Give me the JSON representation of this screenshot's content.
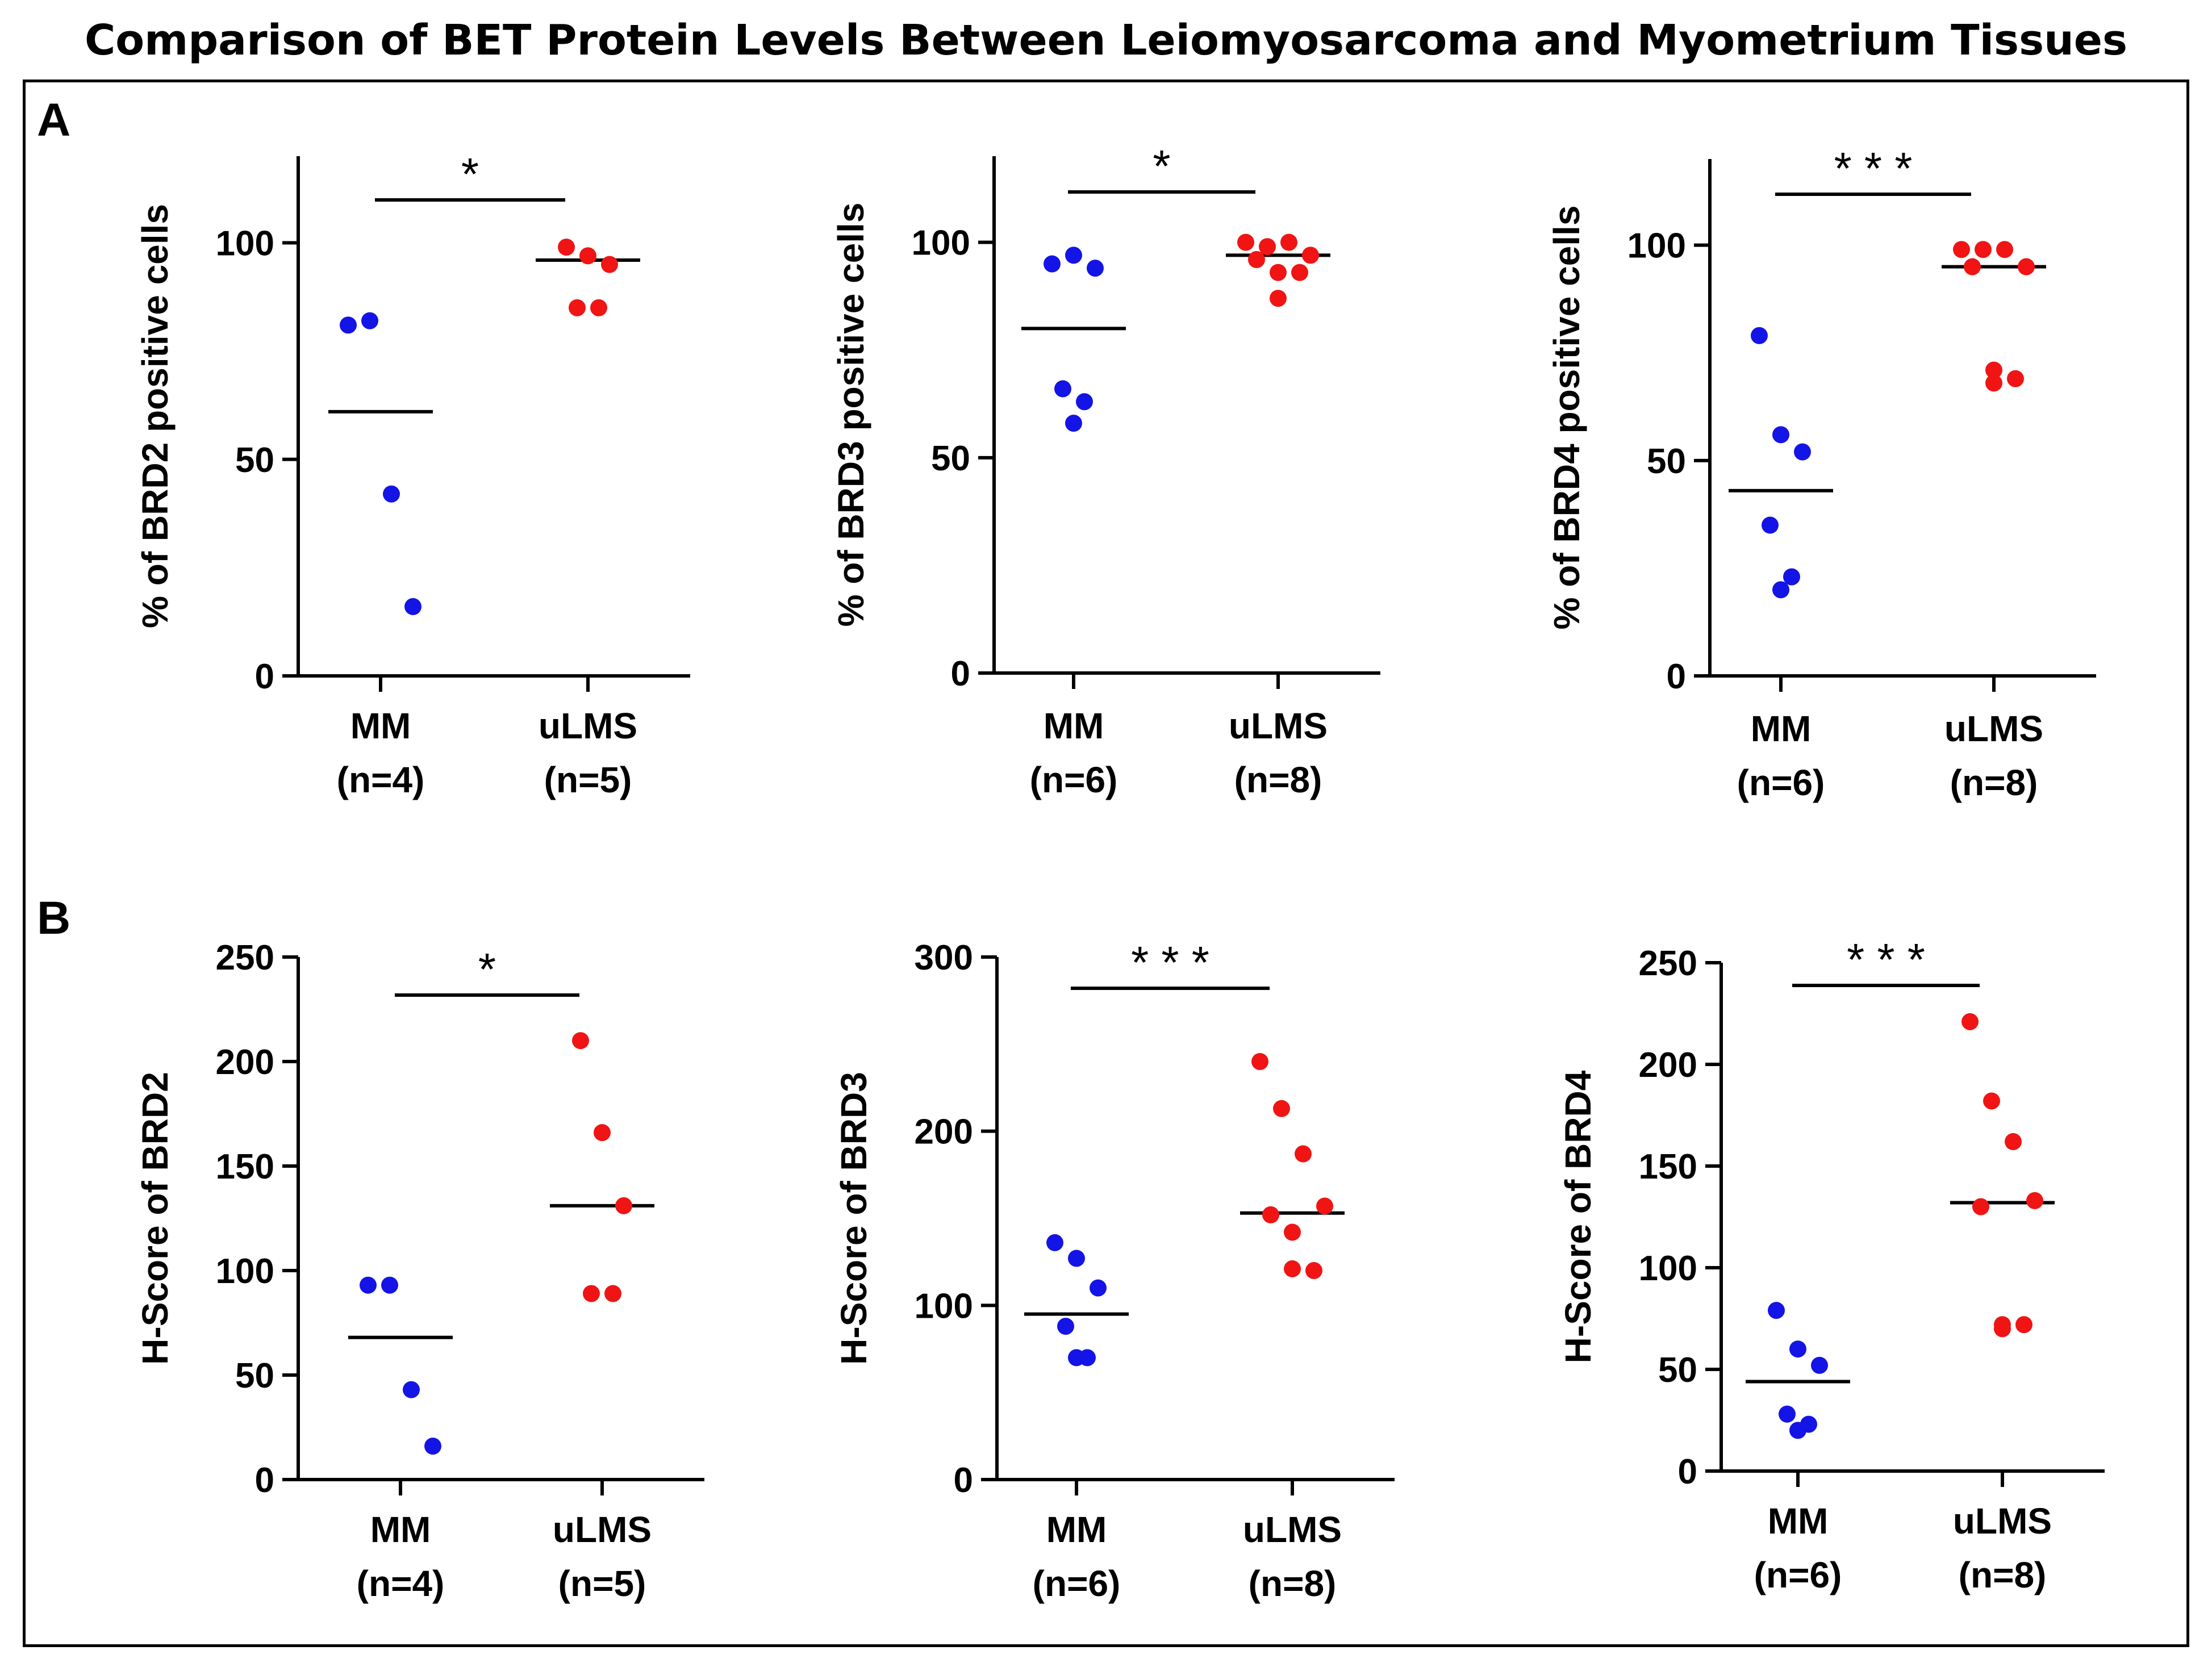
{
  "title": "Comparison  of BET Protein Levels Between Leiomyosarcoma and Myometrium Tissues",
  "panels": {
    "a": "A",
    "b": "B"
  },
  "colors": {
    "MM": "#1414e6",
    "uLMS": "#f01414",
    "axis": "#000000"
  },
  "chart_data": [
    {
      "id": "brd2-pct",
      "type": "scatter",
      "ylabel": "% of BRD2 positive cells",
      "ylim": [
        0,
        120
      ],
      "yticks": [
        0,
        50,
        100
      ],
      "significance": "*",
      "groups": [
        {
          "name": "MM",
          "n_label": "(n=4)",
          "values": [
            81,
            82,
            42,
            16
          ],
          "mean": 61
        },
        {
          "name": "uLMS",
          "n_label": "(n=5)",
          "values": [
            99,
            97,
            95,
            85,
            85
          ],
          "mean": 96
        }
      ]
    },
    {
      "id": "brd3-pct",
      "type": "scatter",
      "ylabel": "% of BRD3 positive cells",
      "ylim": [
        0,
        120
      ],
      "yticks": [
        0,
        50,
        100
      ],
      "significance": "*",
      "groups": [
        {
          "name": "MM",
          "n_label": "(n=6)",
          "values": [
            95,
            97,
            94,
            66,
            63,
            58
          ],
          "mean": 80
        },
        {
          "name": "uLMS",
          "n_label": "(n=8)",
          "values": [
            100,
            99,
            100,
            97,
            96,
            93,
            93,
            87
          ],
          "mean": 97
        }
      ]
    },
    {
      "id": "brd4-pct",
      "type": "scatter",
      "ylabel": "% of BRD4 positive cells",
      "ylim": [
        0,
        120
      ],
      "yticks": [
        0,
        50,
        100
      ],
      "significance": "***",
      "groups": [
        {
          "name": "MM",
          "n_label": "(n=6)",
          "values": [
            79,
            56,
            52,
            35,
            23,
            20
          ],
          "mean": 43
        },
        {
          "name": "uLMS",
          "n_label": "(n=8)",
          "values": [
            99,
            99,
            99,
            95,
            95,
            71,
            69,
            68
          ],
          "mean": 95
        }
      ]
    },
    {
      "id": "brd2-hscore",
      "type": "scatter",
      "ylabel": "H-Score of BRD2",
      "ylim": [
        0,
        250
      ],
      "yticks": [
        0,
        50,
        100,
        150,
        200,
        250
      ],
      "significance": "*",
      "groups": [
        {
          "name": "MM",
          "n_label": "(n=4)",
          "values": [
            93,
            93,
            43,
            16
          ],
          "mean": 68
        },
        {
          "name": "uLMS",
          "n_label": "(n=5)",
          "values": [
            210,
            166,
            131,
            89,
            89
          ],
          "mean": 131
        }
      ]
    },
    {
      "id": "brd3-hscore",
      "type": "scatter",
      "ylabel": "H-Score of BRD3",
      "ylim": [
        0,
        300
      ],
      "yticks": [
        0,
        100,
        200,
        300
      ],
      "significance": "***",
      "groups": [
        {
          "name": "MM",
          "n_label": "(n=6)",
          "values": [
            136,
            127,
            110,
            88,
            70,
            70
          ],
          "mean": 95
        },
        {
          "name": "uLMS",
          "n_label": "(n=8)",
          "values": [
            240,
            213,
            187,
            157,
            152,
            142,
            120,
            121
          ],
          "mean": 153
        }
      ]
    },
    {
      "id": "brd4-hscore",
      "type": "scatter",
      "ylabel": "H-Score of BRD4",
      "ylim": [
        0,
        250
      ],
      "yticks": [
        0,
        50,
        100,
        150,
        200,
        250
      ],
      "significance": "***",
      "groups": [
        {
          "name": "MM",
          "n_label": "(n=6)",
          "values": [
            79,
            60,
            52,
            28,
            23,
            20
          ],
          "mean": 44
        },
        {
          "name": "uLMS",
          "n_label": "(n=8)",
          "values": [
            221,
            182,
            162,
            133,
            130,
            72,
            72,
            70
          ],
          "mean": 132
        }
      ]
    }
  ]
}
